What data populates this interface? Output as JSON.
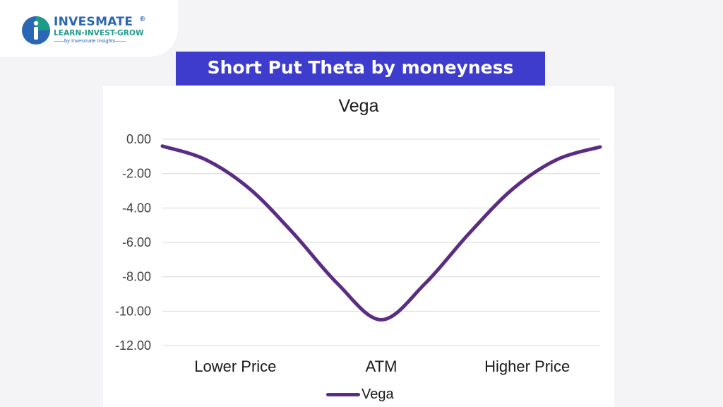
{
  "brand": {
    "name": "INVESMATE",
    "registered_mark": "®",
    "tagline": "LEARN-INVEST-GROW",
    "subline": "by Invesmate Insights"
  },
  "banner": {
    "text": "Short Put Theta by moneyness"
  },
  "colors": {
    "banner": "#3d3ccc",
    "line": "#5b2c83",
    "brand_blue": "#2a66b4",
    "brand_teal": "#1f9a8a"
  },
  "chart_data": {
    "type": "line",
    "title": "Vega",
    "categories": [
      "Lower Price",
      "ATM",
      "Higher Price"
    ],
    "ylim": [
      -12,
      0
    ],
    "yticks": [
      "0.00",
      "-2.00",
      "-4.00",
      "-6.00",
      "-8.00",
      "-10.00",
      "-12.00"
    ],
    "grid": true,
    "legend": "bottom",
    "series": [
      {
        "name": "Vega",
        "x": [
          0,
          0.1,
          0.2,
          0.3,
          0.4,
          0.5,
          0.6,
          0.7,
          0.8,
          0.9,
          1.0
        ],
        "values": [
          -0.4,
          -1.2,
          -2.9,
          -5.5,
          -8.4,
          -10.5,
          -8.4,
          -5.5,
          -2.9,
          -1.2,
          -0.45
        ]
      }
    ]
  }
}
